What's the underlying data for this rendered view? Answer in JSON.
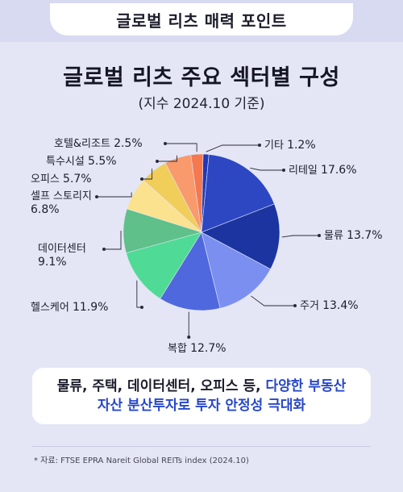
{
  "header": {
    "label": "글로벌 리츠 매력 포인트"
  },
  "title": "글로벌 리츠 주요 섹터별 구성",
  "subtitle": "(지수 2024.10 기준)",
  "chart_data": {
    "type": "pie",
    "title": "글로벌 리츠 주요 섹터별 구성",
    "subtitle": "(지수 2024.10 기준)",
    "slices": [
      {
        "label": "기타",
        "value": 1.2,
        "pct": "1.2%",
        "color": "#1e39b8"
      },
      {
        "label": "리테일",
        "value": 17.6,
        "pct": "17.6%",
        "color": "#2d47c2"
      },
      {
        "label": "물류",
        "value": 13.7,
        "pct": "13.7%",
        "color": "#1b349f"
      },
      {
        "label": "주거",
        "value": 13.4,
        "pct": "13.4%",
        "color": "#7b8ff0"
      },
      {
        "label": "복합",
        "value": 12.7,
        "pct": "12.7%",
        "color": "#5068de"
      },
      {
        "label": "헬스케어",
        "value": 11.9,
        "pct": "11.9%",
        "color": "#4fdb95"
      },
      {
        "label": "데이터센터",
        "value": 9.1,
        "pct": "9.1%",
        "color": "#5fc08a"
      },
      {
        "label": "셀프 스토리지",
        "value": 6.8,
        "pct": "6.8%",
        "color": "#fbe28e"
      },
      {
        "label": "오피스",
        "value": 5.7,
        "pct": "5.7%",
        "color": "#f1cd5a"
      },
      {
        "label": "특수시설",
        "value": 5.5,
        "pct": "5.5%",
        "color": "#f89a6c"
      },
      {
        "label": "호텔&리조트",
        "value": 2.5,
        "pct": "2.5%",
        "color": "#f5784e"
      }
    ]
  },
  "callout": {
    "line1_plain": "물류, 주택, 데이터센터, 오피스 등,",
    "line1_highlight": "다양한 부동산",
    "line2_highlight": "자산 분산투자로 투자 안정성 극대화"
  },
  "source": "* 자료: FTSE EPRA Nareit Global REITs index (2024.10)"
}
